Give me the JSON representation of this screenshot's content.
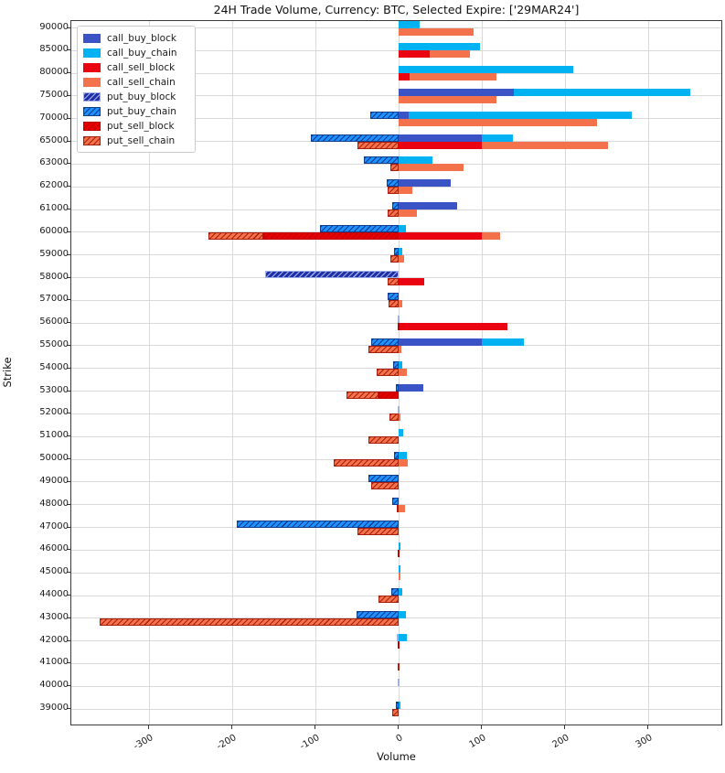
{
  "figure": {
    "title": "24H Trade Volume, Currency: BTC, Selected Expire: ['29MAR24']",
    "xlabel": "Volume",
    "ylabel": "Strike"
  },
  "colors": {
    "call_buy_block": "#3a53c5",
    "call_buy_chain": "#00b2f2",
    "call_sell_block": "#ea0310",
    "call_sell_chain": "#f4724b",
    "put_buy_block": "#2230a8",
    "put_buy_chain": "#1e90ff",
    "put_sell_block": "#e60000",
    "put_sell_chain": "#f4724b",
    "hatch_put_buy_block": "#9fb2e8",
    "hatch_put_buy_chain": "#123c8c",
    "hatch_put_sell_block": "#c00000",
    "hatch_put_sell_chain": "#a81f0e",
    "grid": "#d9d9d9"
  },
  "chart_data": {
    "type": "bar",
    "orientation": "horizontal",
    "stacked": true,
    "title": "24H Trade Volume, Currency: BTC, Selected Expire: ['29MAR24']",
    "xlabel": "Volume",
    "ylabel": "Strike",
    "xlim": [
      -394,
      390
    ],
    "x_ticks": [
      -300,
      -200,
      -100,
      0,
      100,
      200,
      300
    ],
    "grid": true,
    "legend_position": "upper-left",
    "legend": [
      {
        "name": "call_buy_block",
        "hatched": false
      },
      {
        "name": "call_buy_chain",
        "hatched": false
      },
      {
        "name": "call_sell_block",
        "hatched": false
      },
      {
        "name": "call_sell_chain",
        "hatched": false
      },
      {
        "name": "put_buy_block",
        "hatched": true
      },
      {
        "name": "put_buy_chain",
        "hatched": true
      },
      {
        "name": "put_sell_block",
        "hatched": true
      },
      {
        "name": "put_sell_chain",
        "hatched": true
      }
    ],
    "buy_series": [
      "call_buy_block",
      "call_buy_chain",
      "put_buy_block",
      "put_buy_chain"
    ],
    "sell_series": [
      "call_sell_block",
      "call_sell_chain",
      "put_sell_block",
      "put_sell_chain"
    ],
    "rows": [
      {
        "strike": 90000,
        "call_buy_block": 0,
        "call_buy_chain": 25,
        "call_sell_block": 0,
        "call_sell_chain": 90,
        "put_buy_block": 0,
        "put_buy_chain": 0,
        "put_sell_block": 0,
        "put_sell_chain": 0
      },
      {
        "strike": 85000,
        "call_buy_block": 0,
        "call_buy_chain": 97,
        "call_sell_block": 37,
        "call_sell_chain": 48,
        "put_buy_block": 0,
        "put_buy_chain": 0,
        "put_sell_block": 0,
        "put_sell_chain": 0
      },
      {
        "strike": 80000,
        "call_buy_block": 0,
        "call_buy_chain": 210,
        "call_sell_block": 13,
        "call_sell_chain": 104,
        "put_buy_block": 0,
        "put_buy_chain": 0,
        "put_sell_block": 0,
        "put_sell_chain": 0
      },
      {
        "strike": 75000,
        "call_buy_block": 138,
        "call_buy_chain": 212,
        "call_sell_block": 0,
        "call_sell_chain": 117,
        "put_buy_block": 0,
        "put_buy_chain": 0,
        "put_sell_block": 0,
        "put_sell_chain": 0
      },
      {
        "strike": 70000,
        "call_buy_block": 12,
        "call_buy_chain": 268,
        "call_sell_block": 0,
        "call_sell_chain": 238,
        "put_buy_block": 0,
        "put_buy_chain": -34,
        "put_sell_block": 0,
        "put_sell_chain": 0
      },
      {
        "strike": 65000,
        "call_buy_block": 100,
        "call_buy_chain": 37,
        "call_sell_block": 100,
        "call_sell_chain": 152,
        "put_buy_block": 0,
        "put_buy_chain": -106,
        "put_sell_block": 0,
        "put_sell_chain": -50
      },
      {
        "strike": 63000,
        "call_buy_block": 0,
        "call_buy_chain": 40,
        "call_sell_block": 0,
        "call_sell_chain": 78,
        "put_buy_block": 0,
        "put_buy_chain": -42,
        "put_sell_block": 0,
        "put_sell_chain": -10
      },
      {
        "strike": 62000,
        "call_buy_block": 62,
        "call_buy_chain": 0,
        "call_sell_block": 0,
        "call_sell_chain": 16,
        "put_buy_block": 0,
        "put_buy_chain": -15,
        "put_sell_block": 0,
        "put_sell_chain": -14
      },
      {
        "strike": 61000,
        "call_buy_block": 70,
        "call_buy_chain": 0,
        "call_sell_block": 0,
        "call_sell_chain": 22,
        "put_buy_block": 0,
        "put_buy_chain": -8,
        "put_sell_block": 0,
        "put_sell_chain": -14
      },
      {
        "strike": 60000,
        "call_buy_block": 0,
        "call_buy_chain": 8,
        "call_sell_block": 100,
        "call_sell_chain": 22,
        "put_buy_block": 0,
        "put_buy_chain": -95,
        "put_sell_block": -163,
        "put_sell_chain": -66
      },
      {
        "strike": 59000,
        "call_buy_block": 0,
        "call_buy_chain": 4,
        "call_sell_block": 0,
        "call_sell_chain": 6,
        "put_buy_block": 0,
        "put_buy_chain": -6,
        "put_sell_block": 0,
        "put_sell_chain": -10
      },
      {
        "strike": 58000,
        "call_buy_block": 0,
        "call_buy_chain": 0,
        "call_sell_block": 30,
        "call_sell_chain": 0,
        "put_buy_block": -161,
        "put_buy_chain": 0,
        "put_sell_block": 0,
        "put_sell_chain": -14
      },
      {
        "strike": 57000,
        "call_buy_block": 0,
        "call_buy_chain": 0,
        "call_sell_block": 0,
        "call_sell_chain": 4,
        "put_buy_block": 0,
        "put_buy_chain": -14,
        "put_sell_block": 0,
        "put_sell_chain": -12
      },
      {
        "strike": 56000,
        "call_buy_block": 0,
        "call_buy_chain": 0,
        "call_sell_block": 130,
        "call_sell_chain": 0,
        "put_buy_block": -2,
        "put_buy_chain": 0,
        "put_sell_block": -2,
        "put_sell_chain": 0
      },
      {
        "strike": 55000,
        "call_buy_block": 100,
        "call_buy_chain": 50,
        "call_sell_block": 0,
        "call_sell_chain": 3,
        "put_buy_block": 0,
        "put_buy_chain": -33,
        "put_sell_block": 0,
        "put_sell_chain": -37
      },
      {
        "strike": 54000,
        "call_buy_block": 0,
        "call_buy_chain": 4,
        "call_sell_block": 0,
        "call_sell_chain": 10,
        "put_buy_block": 0,
        "put_buy_chain": -7,
        "put_sell_block": 0,
        "put_sell_chain": -27
      },
      {
        "strike": 53000,
        "call_buy_block": 29,
        "call_buy_chain": 0,
        "call_sell_block": 0,
        "call_sell_chain": 0,
        "put_buy_block": 0,
        "put_buy_chain": -4,
        "put_sell_block": -25,
        "put_sell_chain": -38
      },
      {
        "strike": 52000,
        "call_buy_block": 0,
        "call_buy_chain": 0,
        "call_sell_block": 0,
        "call_sell_chain": 2,
        "put_buy_block": -2,
        "put_buy_chain": 0,
        "put_sell_block": 0,
        "put_sell_chain": -11
      },
      {
        "strike": 51000,
        "call_buy_block": 0,
        "call_buy_chain": 5,
        "call_sell_block": 0,
        "call_sell_chain": 0,
        "put_buy_block": 0,
        "put_buy_chain": 0,
        "put_sell_block": 0,
        "put_sell_chain": -37
      },
      {
        "strike": 50000,
        "call_buy_block": 0,
        "call_buy_chain": 10,
        "call_sell_block": 0,
        "call_sell_chain": 11,
        "put_buy_block": 0,
        "put_buy_chain": -6,
        "put_sell_block": 0,
        "put_sell_chain": -78
      },
      {
        "strike": 49000,
        "call_buy_block": 0,
        "call_buy_chain": 0,
        "call_sell_block": 0,
        "call_sell_chain": 0,
        "put_buy_block": 0,
        "put_buy_chain": -37,
        "put_sell_block": 0,
        "put_sell_chain": -33
      },
      {
        "strike": 48000,
        "call_buy_block": 0,
        "call_buy_chain": 0,
        "call_sell_block": 0,
        "call_sell_chain": 7,
        "put_buy_block": 0,
        "put_buy_chain": -8,
        "put_sell_block": 0,
        "put_sell_chain": -3
      },
      {
        "strike": 47000,
        "call_buy_block": 0,
        "call_buy_chain": 0,
        "call_sell_block": 0,
        "call_sell_chain": 0,
        "put_buy_block": 0,
        "put_buy_chain": -195,
        "put_sell_block": 0,
        "put_sell_chain": -50
      },
      {
        "strike": 46000,
        "call_buy_block": 0,
        "call_buy_chain": 2,
        "call_sell_block": 0,
        "call_sell_chain": 0,
        "put_buy_block": 0,
        "put_buy_chain": 0,
        "put_sell_block": -2,
        "put_sell_chain": 0
      },
      {
        "strike": 45000,
        "call_buy_block": 0,
        "call_buy_chain": 2,
        "call_sell_block": 0,
        "call_sell_chain": 2,
        "put_buy_block": 0,
        "put_buy_chain": 0,
        "put_sell_block": 0,
        "put_sell_chain": 0
      },
      {
        "strike": 44000,
        "call_buy_block": 0,
        "call_buy_chain": 4,
        "call_sell_block": 0,
        "call_sell_chain": 0,
        "put_buy_block": 0,
        "put_buy_chain": -9,
        "put_sell_block": 0,
        "put_sell_chain": -24
      },
      {
        "strike": 43000,
        "call_buy_block": 0,
        "call_buy_chain": 8,
        "call_sell_block": 0,
        "call_sell_chain": 0,
        "put_buy_block": 0,
        "put_buy_chain": -51,
        "put_sell_block": 0,
        "put_sell_chain": -360
      },
      {
        "strike": 42000,
        "call_buy_block": 0,
        "call_buy_chain": 10,
        "call_sell_block": 0,
        "call_sell_chain": 0,
        "put_buy_block": -3,
        "put_buy_chain": 0,
        "put_sell_block": -2,
        "put_sell_chain": 0
      },
      {
        "strike": 41000,
        "call_buy_block": 0,
        "call_buy_chain": 0,
        "call_sell_block": 0,
        "call_sell_chain": 0,
        "put_buy_block": 0,
        "put_buy_chain": 0,
        "put_sell_block": 0,
        "put_sell_chain": -2
      },
      {
        "strike": 40000,
        "call_buy_block": 0,
        "call_buy_chain": 0,
        "call_sell_block": 0,
        "call_sell_chain": 0,
        "put_buy_block": -2,
        "put_buy_chain": 0,
        "put_sell_block": 0,
        "put_sell_chain": 0
      },
      {
        "strike": 39000,
        "call_buy_block": 0,
        "call_buy_chain": 2,
        "call_sell_block": 0,
        "call_sell_chain": 0,
        "put_buy_block": 0,
        "put_buy_chain": -4,
        "put_sell_block": 0,
        "put_sell_chain": -8
      }
    ]
  }
}
